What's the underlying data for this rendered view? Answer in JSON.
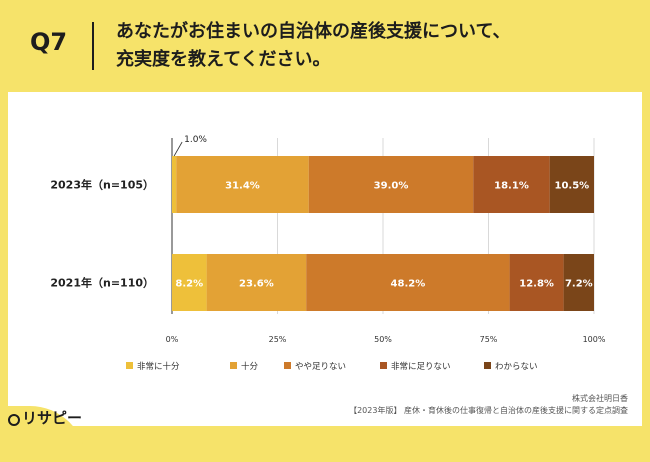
{
  "header": {
    "q_label": "Q7",
    "question_line1": "あなたがお住まいの自治体の産後支援について、",
    "question_line2": "充実度を教えてください。"
  },
  "chart_data": {
    "type": "bar",
    "orientation": "horizontal",
    "stacked": true,
    "categories": [
      "2023年（n=105）",
      "2021年（n=110）"
    ],
    "series": [
      {
        "name": "非常に十分",
        "values": [
          1.0,
          8.2
        ],
        "labels": [
          "1.0%",
          "8.2%"
        ],
        "color": "#eec03a"
      },
      {
        "name": "十分",
        "values": [
          31.4,
          23.6
        ],
        "labels": [
          "31.4%",
          "23.6%"
        ],
        "color": "#e3a235"
      },
      {
        "name": "やや足りない",
        "values": [
          39.0,
          48.2
        ],
        "labels": [
          "39.0%",
          "48.2%"
        ],
        "color": "#cd7a2a"
      },
      {
        "name": "非常に足りない",
        "values": [
          18.1,
          12.8
        ],
        "labels": [
          "18.1%",
          "12.8%"
        ],
        "color": "#a95623"
      },
      {
        "name": "わからない",
        "values": [
          10.5,
          7.2
        ],
        "labels": [
          "10.5%",
          "7.2%"
        ],
        "color": "#7a4519"
      }
    ],
    "xlim": [
      0,
      100
    ],
    "xticks": [
      "0%",
      "25%",
      "50%",
      "75%",
      "100%"
    ],
    "legend_position": "bottom",
    "grid": true
  },
  "footer": {
    "company": "株式会社明日香",
    "source": "【2023年版】 産休・育休後の仕事復帰と自治体の産後支援に関する定点調査",
    "logo_text": "リサピー"
  }
}
